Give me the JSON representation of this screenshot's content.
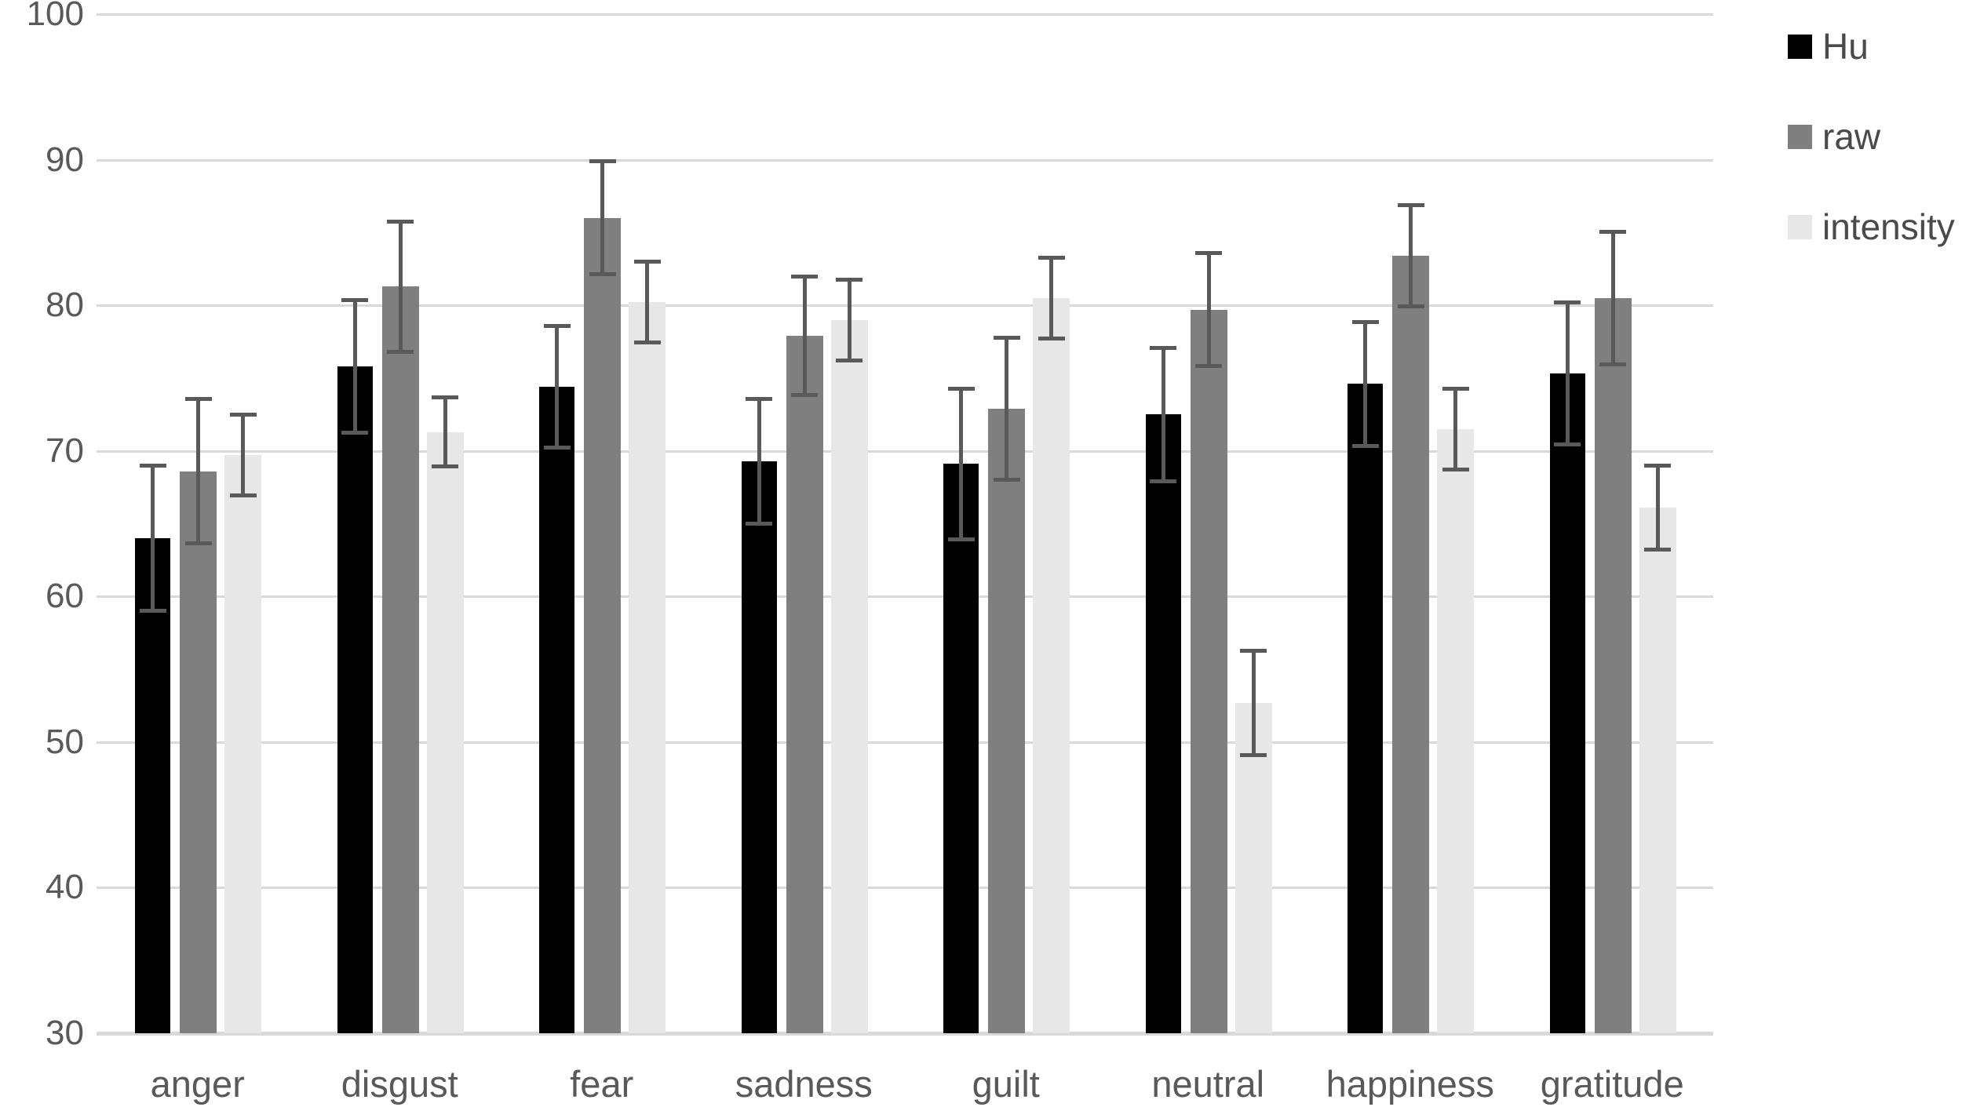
{
  "chart_data": {
    "type": "bar",
    "title": "",
    "xlabel": "",
    "ylabel": "",
    "categories": [
      "anger",
      "disgust",
      "fear",
      "sadness",
      "guilt",
      "neutral",
      "happiness",
      "gratitude"
    ],
    "series": [
      {
        "name": "Hu",
        "color": "#000000",
        "values": [
          64.0,
          75.8,
          74.4,
          69.3,
          69.1,
          72.5,
          74.6,
          75.3
        ],
        "errors": [
          5.0,
          4.6,
          4.2,
          4.3,
          5.2,
          4.6,
          4.3,
          4.9
        ]
      },
      {
        "name": "raw",
        "color": "#7f7f7f",
        "values": [
          68.6,
          81.3,
          86.0,
          77.9,
          72.9,
          79.7,
          83.4,
          80.5
        ],
        "errors": [
          5.0,
          4.5,
          3.9,
          4.1,
          4.9,
          3.9,
          3.5,
          4.6
        ]
      },
      {
        "name": "intensity",
        "color": "#e7e7e7",
        "values": [
          69.7,
          71.3,
          80.2,
          79.0,
          80.5,
          52.7,
          71.5,
          66.1
        ],
        "errors": [
          2.8,
          2.4,
          2.8,
          2.8,
          2.8,
          3.6,
          2.8,
          2.9
        ]
      }
    ],
    "ylim": [
      30,
      100
    ],
    "yticks": [
      "30",
      "40",
      "50",
      "60",
      "70",
      "80",
      "90",
      "100"
    ],
    "grid": true,
    "legend_position": "top-right",
    "error_bars": true,
    "colors": {
      "gridline": "#d9d9d9",
      "axis_line": "#d9d9d9",
      "error_bar": "#595959",
      "tick_label": "#595959",
      "legend_text": "#4a4a4a",
      "background": "#ffffff"
    }
  }
}
